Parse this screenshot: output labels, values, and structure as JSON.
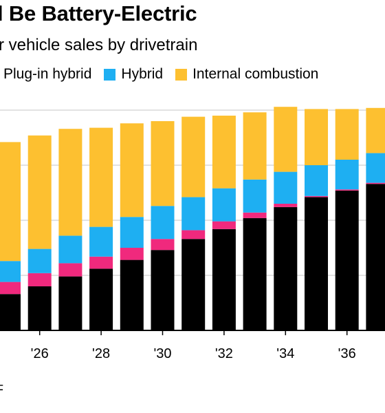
{
  "title": "l Be Battery-Electric",
  "subtitle": "r vehicle sales by drivetrain",
  "footer": "F",
  "colors": {
    "battery_electric": "#000000",
    "plug_in_hybrid": "#f0297d",
    "hybrid": "#1eaff2",
    "internal_combustion": "#fdc030",
    "gridline": "#d9d9d9",
    "baseline": "#000000"
  },
  "chart_data": {
    "type": "bar",
    "stacked": true,
    "categories": [
      "'25",
      "'26",
      "'27",
      "'28",
      "'29",
      "'30",
      "'31",
      "'32",
      "'33",
      "'34",
      "'35",
      "'36",
      "'37"
    ],
    "x_tick_labels": [
      "'26",
      "'28",
      "'30",
      "'32",
      "'34",
      "'36"
    ],
    "ylim": [
      0,
      100
    ],
    "grid": true,
    "legend_position": "top",
    "series": [
      {
        "key": "battery_electric",
        "name": "",
        "values": [
          16.5,
          20,
          24.5,
          28,
          32,
          36.5,
          41.5,
          46,
          51,
          56,
          60.5,
          63.5,
          66.5
        ]
      },
      {
        "key": "plug_in_hybrid",
        "name": "Plug-in hybrid",
        "values": [
          5.5,
          6,
          6,
          5.5,
          5.5,
          5,
          4,
          3.5,
          2.5,
          1.5,
          0.5,
          0.5,
          0.5
        ]
      },
      {
        "key": "hybrid",
        "name": "Hybrid",
        "values": [
          9.5,
          11,
          12.5,
          13.5,
          14,
          15,
          15,
          15,
          15,
          14.5,
          14,
          13.5,
          13.5
        ]
      },
      {
        "key": "internal_combustion",
        "name": "Internal combustion",
        "values": [
          54,
          51.5,
          48.5,
          45,
          42.5,
          38.5,
          36.5,
          33,
          30.5,
          29.5,
          25.5,
          23,
          20.5
        ]
      }
    ]
  }
}
